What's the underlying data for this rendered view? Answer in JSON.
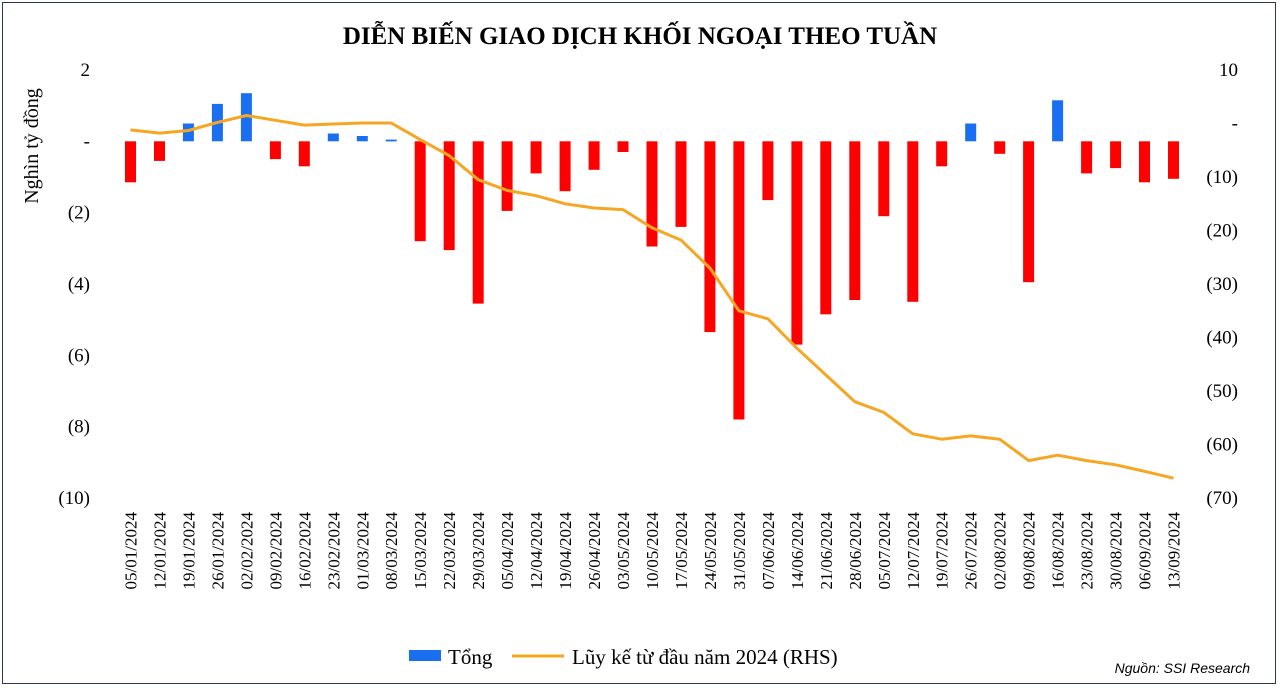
{
  "chart_data": {
    "type": "bar+line",
    "title": "DIỄN BIẾN GIAO DỊCH KHỐI NGOẠI THEO TUẦN",
    "ylabel": "Nghìn tỷ đồng",
    "categories": [
      "05/01/2024",
      "12/01/2024",
      "19/01/2024",
      "26/01/2024",
      "02/02/2024",
      "09/02/2024",
      "16/02/2024",
      "23/02/2024",
      "01/03/2024",
      "08/03/2024",
      "15/03/2024",
      "22/03/2024",
      "29/03/2024",
      "05/04/2024",
      "12/04/2024",
      "19/04/2024",
      "26/04/2024",
      "03/05/2024",
      "10/05/2024",
      "17/05/2024",
      "24/05/2024",
      "31/05/2024",
      "07/06/2024",
      "14/06/2024",
      "21/06/2024",
      "28/06/2024",
      "05/07/2024",
      "12/07/2024",
      "19/07/2024",
      "26/07/2024",
      "02/08/2024",
      "09/08/2024",
      "16/08/2024",
      "23/08/2024",
      "30/08/2024",
      "06/09/2024",
      "13/09/2024"
    ],
    "series": [
      {
        "name": "Tổng",
        "axis": "left",
        "type": "bar",
        "values": [
          -1.15,
          -0.55,
          0.5,
          1.05,
          1.35,
          -0.5,
          -0.7,
          0.22,
          0.15,
          0.05,
          -2.8,
          -3.05,
          -4.55,
          -1.95,
          -0.9,
          -1.4,
          -0.8,
          -0.3,
          -2.95,
          -2.4,
          -5.35,
          -7.8,
          -1.65,
          -5.7,
          -4.85,
          -4.45,
          -2.1,
          -4.5,
          -0.7,
          0.5,
          -0.35,
          -3.95,
          1.15,
          -0.9,
          -0.75,
          -1.15,
          -1.05
        ]
      },
      {
        "name": "Lũy kế từ đầu năm 2024 (RHS)",
        "axis": "right",
        "type": "line",
        "values": [
          -1.2,
          -1.8,
          -1.3,
          0.2,
          1.5,
          0.6,
          -0.3,
          -0.1,
          0.1,
          0.1,
          -3.0,
          -6.0,
          -10.5,
          -12.5,
          -13.5,
          -15.0,
          -15.8,
          -16.1,
          -19.5,
          -21.8,
          -27.0,
          -35.0,
          -36.5,
          -42.0,
          -47.0,
          -52.0,
          -54.0,
          -58.0,
          -59.0,
          -58.4,
          -59.0,
          -63.0,
          -62.0,
          -63.0,
          -63.8,
          -65.0,
          -66.3
        ]
      }
    ],
    "ylim_left": [
      -10,
      2
    ],
    "ylim_right": [
      -70,
      10
    ],
    "yticks_left": [
      "2",
      "-",
      "(2)",
      "(4)",
      "(6)",
      "(8)",
      "(10)"
    ],
    "yticks_right": [
      "10",
      "-",
      "(10)",
      "(20)",
      "(30)",
      "(40)",
      "(50)",
      "(60)",
      "(70)"
    ],
    "colors": {
      "positive": "#1a6ff0",
      "negative": "#ff0000",
      "line": "#f5a623"
    },
    "legend": {
      "position": "bottom",
      "items": [
        "Tổng",
        "Lũy kế từ đầu năm 2024 (RHS)"
      ]
    },
    "grid": false,
    "source": "Nguồn: SSI Research"
  }
}
